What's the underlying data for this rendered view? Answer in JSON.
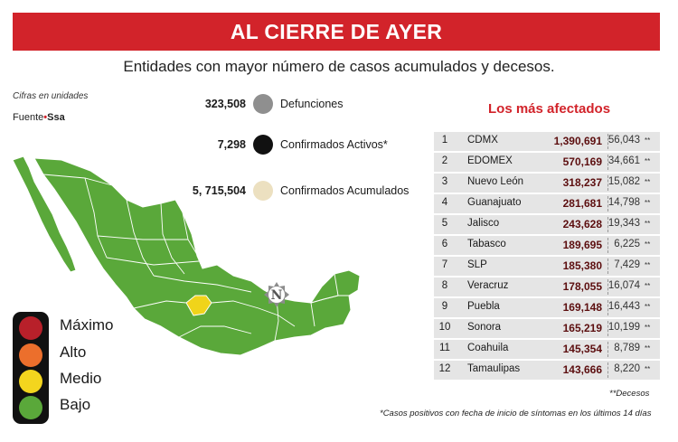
{
  "title": "AL CIERRE DE AYER",
  "subtitle": "Entidades con mayor número de casos acumulados y decesos.",
  "note": "Cifras en unidades",
  "source": {
    "label": "Fuente",
    "separator": "•",
    "org": "Ssa"
  },
  "stats": [
    {
      "value": "323,508",
      "label": "Defunciones",
      "color": "#8f8f8f"
    },
    {
      "value": "7,298",
      "label": "Confirmados Activos*",
      "color": "#111111"
    },
    {
      "value": "5, 715,504",
      "label": "Confirmados Acumulados",
      "color": "#ece0c0"
    }
  ],
  "map": {
    "default_color": "#5aa83a",
    "highlight_color": "#f0d41a",
    "emblem_letter": "N"
  },
  "legend": [
    {
      "label": "Máximo",
      "color": "#b8202a"
    },
    {
      "label": "Alto",
      "color": "#ec6f2c"
    },
    {
      "label": "Medio",
      "color": "#f3d51e"
    },
    {
      "label": "Bajo",
      "color": "#5aa83a"
    }
  ],
  "table": {
    "title": "Los más afectados",
    "rows": [
      {
        "rank": "1",
        "state": "CDMX",
        "cases": "1,390,691",
        "deaths": "56,043",
        "mark": "**"
      },
      {
        "rank": "2",
        "state": "EDOMEX",
        "cases": "570,169",
        "deaths": "34,661",
        "mark": "**"
      },
      {
        "rank": "3",
        "state": "Nuevo León",
        "cases": "318,237",
        "deaths": "15,082",
        "mark": "**"
      },
      {
        "rank": "4",
        "state": "Guanajuato",
        "cases": "281,681",
        "deaths": "14,798",
        "mark": "**"
      },
      {
        "rank": "5",
        "state": "Jalisco",
        "cases": "243,628",
        "deaths": "19,343",
        "mark": "**"
      },
      {
        "rank": "6",
        "state": "Tabasco",
        "cases": "189,695",
        "deaths": "6,225",
        "mark": "**"
      },
      {
        "rank": "7",
        "state": "SLP",
        "cases": "185,380",
        "deaths": "7,429",
        "mark": "**"
      },
      {
        "rank": "8",
        "state": "Veracruz",
        "cases": "178,055",
        "deaths": "16,074",
        "mark": "**"
      },
      {
        "rank": "9",
        "state": "Puebla",
        "cases": "169,148",
        "deaths": "16,443",
        "mark": "**"
      },
      {
        "rank": "10",
        "state": "Sonora",
        "cases": "165,219",
        "deaths": "10,199",
        "mark": "**"
      },
      {
        "rank": "11",
        "state": "Coahuila",
        "cases": "145,354",
        "deaths": "8,789",
        "mark": "**"
      },
      {
        "rank": "12",
        "state": "Tamaulipas",
        "cases": "143,666",
        "deaths": "8,220",
        "mark": "**"
      }
    ],
    "deaths_footnote": "**Decesos",
    "active_footnote": "*Casos positivos con fecha de inicio de síntomas en los últimos 14 días"
  }
}
